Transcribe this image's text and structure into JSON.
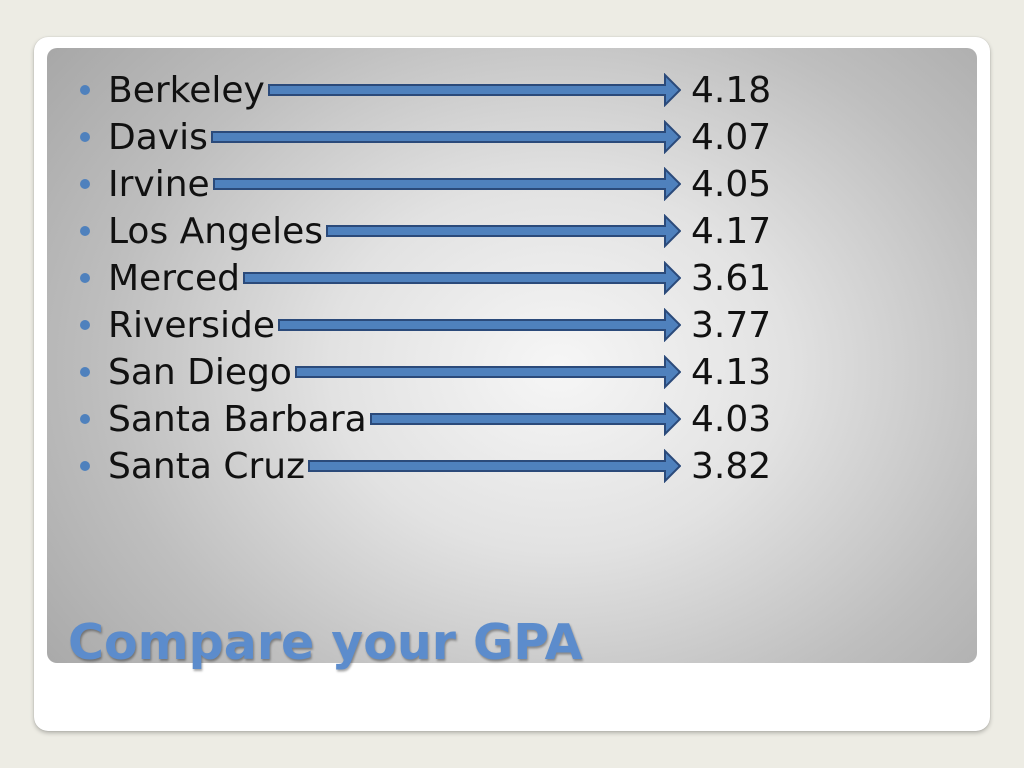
{
  "title": "Compare your GPA",
  "colors": {
    "title": "#5c8ccc",
    "bullet": "#4f81bd",
    "arrow_fill": "#4f81bd",
    "arrow_stroke": "#2b4a7a"
  },
  "items": [
    {
      "campus": "Berkeley",
      "gpa": "4.18"
    },
    {
      "campus": "Davis",
      "gpa": "4.07"
    },
    {
      "campus": "Irvine",
      "gpa": "4.05"
    },
    {
      "campus": "Los Angeles",
      "gpa": "4.17"
    },
    {
      "campus": "Merced",
      "gpa": "3.61"
    },
    {
      "campus": "Riverside",
      "gpa": "3.77"
    },
    {
      "campus": "San Diego",
      "gpa": "4.13"
    },
    {
      "campus": "Santa Barbara",
      "gpa": "4.03"
    },
    {
      "campus": "Santa Cruz",
      "gpa": "3.82"
    }
  ]
}
